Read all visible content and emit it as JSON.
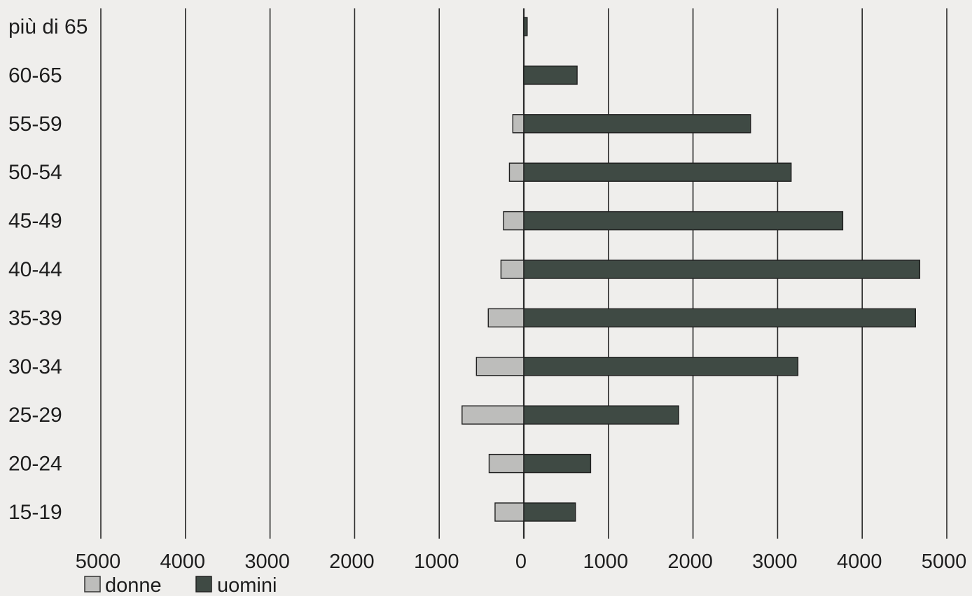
{
  "chart_data": {
    "type": "bar",
    "orientation": "horizontal-population-pyramid",
    "categories": [
      "più di 65",
      "60-65",
      "55-59",
      "50-54",
      "45-49",
      "40-44",
      "35-39",
      "30-34",
      "25-29",
      "20-24",
      "15-19"
    ],
    "series": [
      {
        "name": "donne",
        "color": "#bdbdbb",
        "side": "left",
        "values": [
          0,
          0,
          130,
          170,
          240,
          270,
          420,
          560,
          730,
          410,
          340
        ]
      },
      {
        "name": "uomini",
        "color": "#3f4a44",
        "side": "right",
        "values": [
          40,
          630,
          2680,
          3160,
          3770,
          4680,
          4630,
          3240,
          1830,
          790,
          610
        ]
      }
    ],
    "x_ticks_left": [
      "5000",
      "4000",
      "3000",
      "2000",
      "1000"
    ],
    "x_ticks_right": [
      "0",
      "1000",
      "2000",
      "3000",
      "4000",
      "5000"
    ],
    "xlim": [
      -5000,
      5000
    ],
    "grid": "vertical lines at every 1000",
    "legend_position": "bottom-left",
    "legend": [
      {
        "label": "donne",
        "color": "#bdbdbb"
      },
      {
        "label": "uomini",
        "color": "#3f4a44"
      }
    ]
  }
}
